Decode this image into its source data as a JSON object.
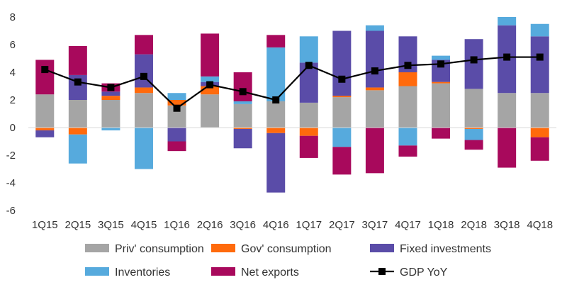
{
  "chart_data": {
    "type": "bar",
    "stacked": true,
    "categories": [
      "1Q15",
      "2Q15",
      "3Q15",
      "4Q15",
      "1Q16",
      "2Q16",
      "3Q16",
      "4Q16",
      "1Q17",
      "2Q17",
      "3Q17",
      "4Q17",
      "1Q18",
      "2Q18",
      "3Q18",
      "4Q18"
    ],
    "ylim": [
      -6,
      8
    ],
    "yticks": [
      -6,
      -4,
      -2,
      0,
      2,
      4,
      6,
      8
    ],
    "grid": false,
    "legend_position": "bottom",
    "series": [
      {
        "name": "Priv' consumption",
        "color": "#a5a5a5",
        "values": [
          2.4,
          2.0,
          2.0,
          2.5,
          1.6,
          2.4,
          1.7,
          1.9,
          1.8,
          2.2,
          2.7,
          3.0,
          3.2,
          2.8,
          2.5,
          2.5
        ]
      },
      {
        "name": "Gov' consumption",
        "color": "#ff6a0c",
        "values": [
          -0.2,
          -0.5,
          0.3,
          0.4,
          0.4,
          0.6,
          -0.1,
          -0.4,
          -0.6,
          0.1,
          0.2,
          1.0,
          0.1,
          -0.1,
          0.0,
          -0.7
        ]
      },
      {
        "name": "Fixed investments",
        "color": "#5a4ca8",
        "values": [
          -0.5,
          1.8,
          0.3,
          2.4,
          -1.0,
          0.3,
          -1.4,
          -4.3,
          2.9,
          4.7,
          4.1,
          2.6,
          1.6,
          3.6,
          4.9,
          4.1
        ]
      },
      {
        "name": "Inventories",
        "color": "#56aadd",
        "values": [
          0.0,
          -2.1,
          -0.2,
          -3.0,
          0.5,
          0.4,
          0.2,
          3.9,
          1.9,
          -1.4,
          0.4,
          -1.3,
          0.3,
          -0.8,
          0.6,
          0.9
        ]
      },
      {
        "name": "Net exports",
        "color": "#a8095c",
        "values": [
          2.5,
          2.1,
          0.6,
          1.4,
          -0.7,
          3.1,
          2.1,
          0.9,
          -1.6,
          -2.0,
          -3.3,
          -0.8,
          -0.8,
          -0.7,
          -2.9,
          -1.7
        ]
      }
    ],
    "line_series": {
      "name": "GDP YoY",
      "color": "#000000",
      "values": [
        4.2,
        3.3,
        2.9,
        3.7,
        1.4,
        3.1,
        2.6,
        2.0,
        4.5,
        3.5,
        4.1,
        4.5,
        4.6,
        4.9,
        5.1,
        5.1
      ]
    }
  },
  "legend": {
    "items": [
      {
        "label": "Priv' consumption",
        "kind": "bar",
        "color": "#a5a5a5"
      },
      {
        "label": "Gov' consumption",
        "kind": "bar",
        "color": "#ff6a0c"
      },
      {
        "label": "Fixed investments",
        "kind": "bar",
        "color": "#5a4ca8"
      },
      {
        "label": "Inventories",
        "kind": "bar",
        "color": "#56aadd"
      },
      {
        "label": "Net exports",
        "kind": "bar",
        "color": "#a8095c"
      },
      {
        "label": "GDP YoY",
        "kind": "line",
        "color": "#000000"
      }
    ]
  }
}
